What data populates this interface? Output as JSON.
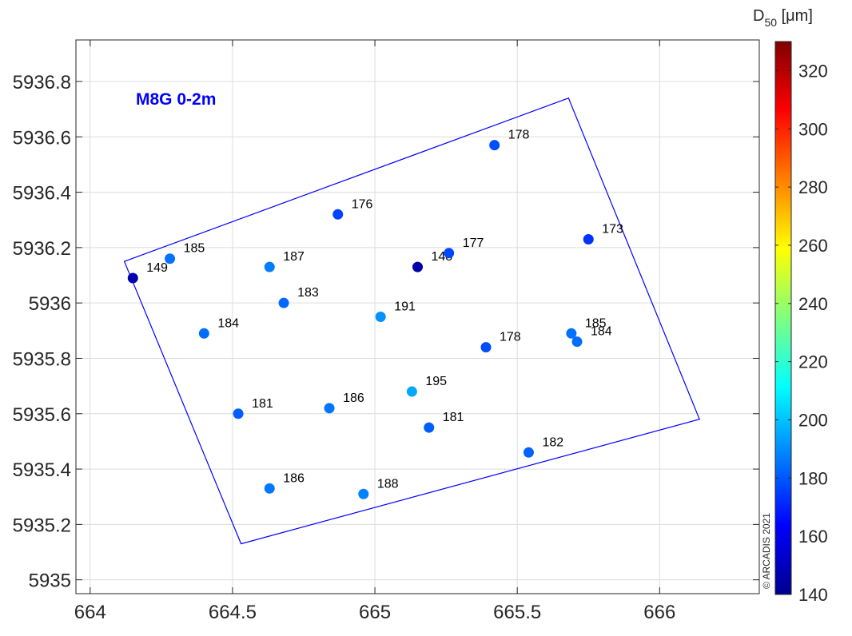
{
  "chart_data": {
    "type": "scatter",
    "title": "M8G 0-2m",
    "xlim": [
      663.95,
      666.35
    ],
    "ylim": [
      5934.95,
      5936.95
    ],
    "xticks": [
      664,
      664.5,
      665,
      665.5,
      666
    ],
    "xtick_labels": [
      "664",
      "664.5",
      "665",
      "665.5",
      "666"
    ],
    "yticks": [
      5935,
      5935.2,
      5935.4,
      5935.6,
      5935.8,
      5936,
      5936.2,
      5936.4,
      5936.6,
      5936.8
    ],
    "ytick_labels": [
      "5935",
      "5935.2",
      "5935.4",
      "5935.6",
      "5935.8",
      "5936",
      "5936.2",
      "5936.4",
      "5936.6",
      "5936.8"
    ],
    "grid": true,
    "colorbar": {
      "label_base": "D",
      "label_sub": "50",
      "label_unit": " [μm]",
      "min": 140,
      "max": 330,
      "ticks": [
        140,
        160,
        180,
        200,
        220,
        240,
        260,
        280,
        300,
        320
      ],
      "tick_labels": [
        "140",
        "160",
        "180",
        "200",
        "220",
        "240",
        "260",
        "280",
        "300",
        "320"
      ],
      "colormap": "jet"
    },
    "boundary_polygon": {
      "x": [
        664.12,
        665.68,
        666.14,
        664.53
      ],
      "y": [
        5936.15,
        5936.74,
        5935.58,
        5935.13
      ],
      "color": "#0000ff"
    },
    "points": [
      {
        "x": 664.15,
        "y": 5936.09,
        "value": 149,
        "label": "149"
      },
      {
        "x": 664.28,
        "y": 5936.16,
        "value": 185,
        "label": "185"
      },
      {
        "x": 664.4,
        "y": 5935.89,
        "value": 184,
        "label": "184"
      },
      {
        "x": 664.52,
        "y": 5935.6,
        "value": 181,
        "label": "181"
      },
      {
        "x": 664.63,
        "y": 5936.13,
        "value": 187,
        "label": "187"
      },
      {
        "x": 664.68,
        "y": 5936.0,
        "value": 183,
        "label": "183"
      },
      {
        "x": 664.63,
        "y": 5935.33,
        "value": 186,
        "label": "186"
      },
      {
        "x": 664.84,
        "y": 5935.62,
        "value": 186,
        "label": "186"
      },
      {
        "x": 664.87,
        "y": 5936.32,
        "value": 176,
        "label": "176"
      },
      {
        "x": 664.96,
        "y": 5935.31,
        "value": 188,
        "label": "188"
      },
      {
        "x": 665.02,
        "y": 5935.95,
        "value": 191,
        "label": "191"
      },
      {
        "x": 665.13,
        "y": 5935.68,
        "value": 195,
        "label": "195"
      },
      {
        "x": 665.15,
        "y": 5936.13,
        "value": 148,
        "label": "148"
      },
      {
        "x": 665.19,
        "y": 5935.55,
        "value": 181,
        "label": "181"
      },
      {
        "x": 665.26,
        "y": 5936.18,
        "value": 177,
        "label": "177"
      },
      {
        "x": 665.39,
        "y": 5935.84,
        "value": 178,
        "label": "178"
      },
      {
        "x": 665.42,
        "y": 5936.57,
        "value": 178,
        "label": "178"
      },
      {
        "x": 665.54,
        "y": 5935.46,
        "value": 182,
        "label": "182"
      },
      {
        "x": 665.69,
        "y": 5935.89,
        "value": 185,
        "label": "185"
      },
      {
        "x": 665.71,
        "y": 5935.86,
        "value": 184,
        "label": "184"
      },
      {
        "x": 665.75,
        "y": 5936.23,
        "value": 173,
        "label": "173"
      }
    ],
    "copyright": "© ARCADIS 2021"
  }
}
